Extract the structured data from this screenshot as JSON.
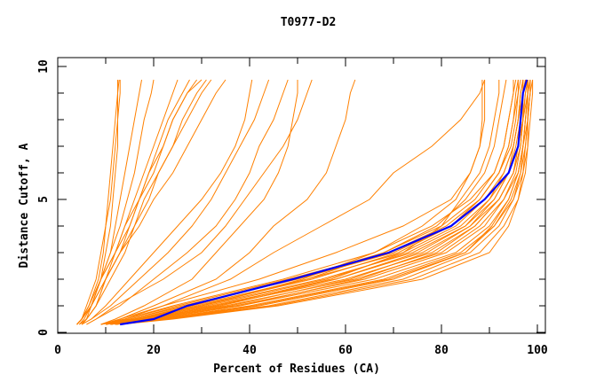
{
  "chart_data": {
    "type": "line",
    "title": "T0977-D2",
    "xlabel": "Percent of Residues (CA)",
    "ylabel": "Distance Cutoff, A",
    "xlim": [
      0,
      100
    ],
    "ylim": [
      0,
      10
    ],
    "x_ticks": [
      "0",
      "20",
      "40",
      "60",
      "80",
      "100"
    ],
    "y_ticks": [
      "0",
      "5",
      "10"
    ],
    "grid": false,
    "colors": {
      "models": "#ff8000",
      "highlight": "#0000ff"
    },
    "y_levels": [
      0.3,
      0.5,
      1,
      2,
      3,
      4,
      5,
      6,
      7,
      8,
      9,
      9.5
    ],
    "highlight_series": {
      "x": [
        13,
        20,
        27,
        49,
        69,
        82,
        89,
        94,
        96,
        96.5,
        97,
        97.8
      ]
    },
    "series": [
      {
        "x": [
          4,
          5,
          6,
          8,
          9,
          10,
          10.5,
          11,
          11.5,
          12,
          12.5,
          12.8
        ]
      },
      {
        "x": [
          4,
          5,
          6.5,
          8.5,
          9.5,
          10,
          11,
          11.5,
          12,
          12.5,
          13,
          13
        ]
      },
      {
        "x": [
          5,
          6,
          7,
          9,
          10,
          11,
          11.5,
          12,
          12.5,
          12.5,
          12.5,
          12.5
        ]
      },
      {
        "x": [
          4,
          5,
          7,
          9,
          11,
          12,
          13,
          14,
          15,
          16,
          17,
          17.5
        ]
      },
      {
        "x": [
          4.5,
          5.5,
          7,
          9,
          11,
          13,
          14.5,
          16,
          17,
          18,
          19.5,
          20
        ]
      },
      {
        "x": [
          4,
          5,
          7,
          10,
          12,
          14,
          16,
          18,
          20,
          22,
          24,
          25
        ]
      },
      {
        "x": [
          5,
          6,
          8,
          10,
          13,
          15,
          17,
          19,
          21,
          23,
          26,
          27.5
        ]
      },
      {
        "x": [
          4,
          5,
          7,
          9,
          12,
          14,
          17,
          19,
          22,
          24,
          27,
          29
        ]
      },
      {
        "x": [
          4.5,
          6,
          8,
          11,
          14,
          16,
          19,
          21,
          24,
          26,
          29,
          31
        ]
      },
      {
        "x": [
          5,
          6,
          8,
          10,
          13,
          16,
          18,
          21,
          24,
          27,
          30,
          32
        ]
      },
      {
        "x": [
          4,
          5,
          7,
          10,
          13,
          17,
          20,
          24,
          27,
          30,
          33,
          35
        ]
      },
      {
        "x": [
          4,
          5,
          6.5,
          9,
          12,
          15,
          17,
          20,
          22,
          24,
          27,
          30
        ]
      },
      {
        "x": [
          5,
          7,
          10,
          15,
          20,
          25,
          30,
          34,
          37,
          39,
          40,
          40.5
        ]
      },
      {
        "x": [
          5,
          7,
          11,
          17,
          23,
          28,
          32,
          35,
          38,
          41,
          43,
          44
        ]
      },
      {
        "x": [
          6,
          8,
          13,
          20,
          27,
          33,
          37,
          40,
          42,
          45,
          47,
          48
        ]
      },
      {
        "x": [
          6,
          8,
          12,
          22,
          30,
          35,
          39,
          43,
          47,
          50,
          52,
          53
        ]
      },
      {
        "x": [
          9,
          12,
          18,
          28,
          33,
          38,
          43,
          46,
          48,
          49,
          50,
          50
        ]
      },
      {
        "x": [
          10,
          13,
          20,
          33,
          40,
          45,
          52,
          56,
          58,
          60,
          61,
          62
        ]
      },
      {
        "x": [
          10,
          14,
          22,
          36,
          45,
          55,
          65,
          70,
          78,
          84,
          88,
          89
        ]
      },
      {
        "x": [
          9,
          14,
          24,
          47,
          66,
          78,
          86,
          91,
          93,
          94,
          95,
          95
        ]
      },
      {
        "x": [
          9,
          15,
          26,
          50,
          70,
          82,
          88,
          92,
          94,
          95,
          96,
          96
        ]
      },
      {
        "x": [
          10,
          16,
          28,
          52,
          72,
          83,
          89,
          93,
          95,
          96,
          96.5,
          97
        ]
      },
      {
        "x": [
          10,
          17,
          30,
          55,
          74,
          85,
          90,
          94,
          95,
          96,
          97,
          97
        ]
      },
      {
        "x": [
          10,
          17,
          32,
          58,
          76,
          86,
          91,
          94,
          96,
          97,
          97,
          97.5
        ]
      },
      {
        "x": [
          11,
          18,
          33,
          60,
          78,
          87,
          92,
          95,
          96,
          97,
          97.5,
          98
        ]
      },
      {
        "x": [
          11,
          19,
          35,
          62,
          80,
          88,
          93,
          95.5,
          96.5,
          97,
          98,
          98
        ]
      },
      {
        "x": [
          11,
          20,
          37,
          64,
          81,
          89,
          93,
          96,
          97,
          97.5,
          98,
          98
        ]
      },
      {
        "x": [
          12,
          20,
          38,
          66,
          83,
          90,
          94,
          96,
          97,
          97.5,
          98,
          98.5
        ]
      },
      {
        "x": [
          12,
          21,
          40,
          68,
          84,
          91,
          94.5,
          96.5,
          97,
          98,
          98,
          98.5
        ]
      },
      {
        "x": [
          12,
          22,
          42,
          70,
          85,
          91,
          95,
          96.5,
          97.5,
          98,
          98.5,
          98.5
        ]
      },
      {
        "x": [
          12,
          22,
          44,
          72,
          86,
          92,
          95,
          97,
          97.5,
          98,
          98.5,
          98.5
        ]
      },
      {
        "x": [
          13,
          23,
          45,
          74,
          88,
          93,
          96,
          97,
          98,
          98,
          98.5,
          99
        ]
      },
      {
        "x": [
          10,
          15,
          27,
          49,
          68,
          80,
          87,
          91,
          93,
          94,
          95,
          95.5
        ]
      },
      {
        "x": [
          9,
          14,
          25,
          48,
          69,
          81,
          88,
          92,
          94,
          95,
          95.5,
          96
        ]
      },
      {
        "x": [
          10,
          16,
          29,
          53,
          71,
          82,
          88,
          92,
          94.5,
          95.5,
          96,
          96.5
        ]
      },
      {
        "x": [
          11,
          18,
          31,
          56,
          73,
          84,
          90,
          93,
          95,
          96,
          96.5,
          97
        ]
      },
      {
        "x": [
          11,
          18,
          34,
          58,
          75,
          85,
          91,
          94,
          95.5,
          96.5,
          97,
          97
        ]
      },
      {
        "x": [
          12,
          19,
          36,
          61,
          77,
          86,
          92,
          95,
          96,
          97,
          97,
          97.5
        ]
      },
      {
        "x": [
          12,
          20,
          38,
          63,
          79,
          87,
          92,
          95,
          96.5,
          97,
          97.5,
          98
        ]
      },
      {
        "x": [
          11,
          19,
          33,
          57,
          72,
          80,
          84,
          88,
          90,
          91,
          92,
          92
        ]
      },
      {
        "x": [
          10,
          16,
          30,
          52,
          68,
          79,
          85,
          89,
          91,
          92,
          93,
          93.5
        ]
      },
      {
        "x": [
          9,
          13,
          22,
          42,
          58,
          72,
          82,
          86,
          88,
          89,
          89,
          89
        ]
      },
      {
        "x": [
          13,
          24,
          46,
          76,
          90,
          94,
          96,
          97.5,
          98,
          98.5,
          99,
          99
        ]
      },
      {
        "x": [
          12,
          21,
          41,
          69,
          85,
          90.5,
          94,
          96,
          97,
          97.5,
          98,
          98
        ]
      },
      {
        "x": [
          10,
          17,
          30,
          51,
          66,
          76,
          83,
          86,
          88,
          88.5,
          88.5,
          88.5
        ]
      }
    ]
  }
}
